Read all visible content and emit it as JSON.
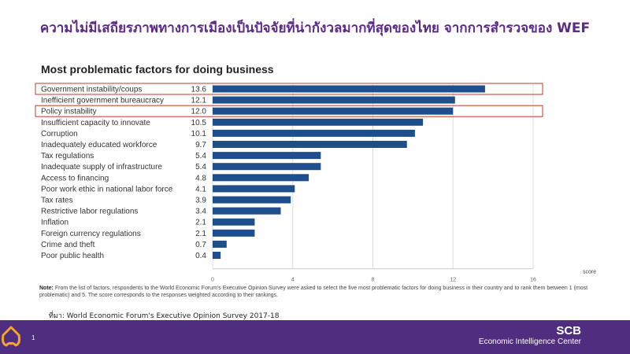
{
  "title": "ความไม่มีเสถียรภาพทางการเมืองเป็นปัจจัยที่น่ากังวลมากที่สุดของไทย  จากการสำรวจของ WEF",
  "note_label": "Note:",
  "note": "From the list of factors, respondents to the World Economic Forum's Executive Opinion Survey were asked to select the five most problematic factors for doing business in their country and to rank them between 1 (most problematic) and 5. The score corresponds to the responses weighted according to their rankings.",
  "source": "ที่มา: World Economic Forum's Executive Opinion Survey 2017-18",
  "footer": {
    "page": "1",
    "brand": "SCB",
    "center": "Economic Intelligence Center"
  },
  "colors": {
    "bar": "#1f4e8c",
    "highlight": "#c0392b",
    "purple": "#4f2d7f"
  },
  "chart_data": {
    "type": "bar",
    "orientation": "horizontal",
    "title": "Most problematic factors for doing business",
    "xlabel": "score",
    "xlim": [
      0,
      16
    ],
    "xticks": [
      0,
      4,
      8,
      12,
      16
    ],
    "grid": true,
    "categories": [
      "Government instability/coups",
      "Inefficient government bureaucracy",
      "Policy instability",
      "Insufficient capacity to innovate",
      "Corruption",
      "Inadequately educated workforce",
      "Tax regulations",
      "Inadequate supply of infrastructure",
      "Access to financing",
      "Poor work ethic in national labor force",
      "Tax rates",
      "Restrictive labor regulations",
      "Inflation",
      "Foreign currency regulations",
      "Crime and theft",
      "Poor public health"
    ],
    "values": [
      13.6,
      12.1,
      12.0,
      10.5,
      10.1,
      9.7,
      5.4,
      5.4,
      4.8,
      4.1,
      3.9,
      3.4,
      2.1,
      2.1,
      0.7,
      0.4
    ],
    "value_labels": [
      "13.6",
      "12.1",
      "12.0",
      "10.5",
      "10.1",
      "9.7",
      "5.4",
      "5.4",
      "4.8",
      "4.1",
      "3.9",
      "3.4",
      "2.1",
      "2.1",
      "0.7",
      "0.4"
    ],
    "highlighted": [
      "Government instability/coups",
      "Policy instability"
    ]
  }
}
